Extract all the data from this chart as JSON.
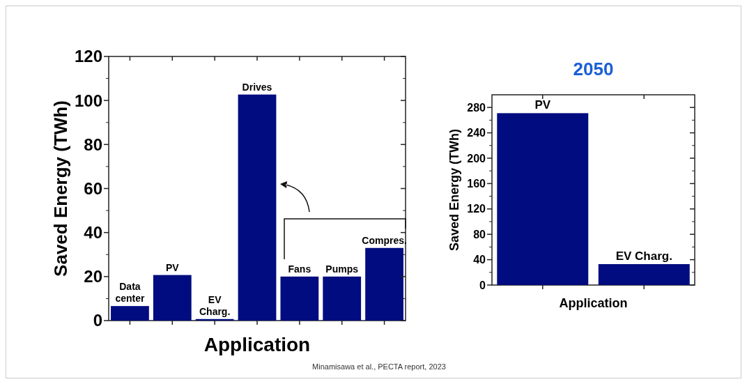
{
  "chart_data": [
    {
      "type": "bar",
      "xlabel": "Application",
      "ylabel": "Saved Energy (TWh)",
      "categories": [
        "Data center",
        "PV",
        "EV Charg.",
        "Drives",
        "Fans",
        "Pumps",
        "Compres."
      ],
      "values": [
        6.6,
        20.7,
        0.7,
        102.7,
        20,
        20,
        33
      ],
      "color": "#000c7f",
      "ylim": [
        0,
        120
      ],
      "yticks": [
        0,
        20,
        40,
        60,
        80,
        100,
        120
      ],
      "grid": false,
      "annotations": [
        "Minamisawa et al., PECTA report, 2023"
      ]
    },
    {
      "type": "bar",
      "title": "2050",
      "xlabel": "Application",
      "ylabel": "Saved Energy (TWh)",
      "categories": [
        "PV",
        "EV Charg."
      ],
      "values": [
        271,
        33
      ],
      "color": "#000c7f",
      "ylim": [
        0,
        300
      ],
      "yticks": [
        0,
        40,
        80,
        120,
        160,
        200,
        240,
        280
      ],
      "grid": false
    }
  ]
}
